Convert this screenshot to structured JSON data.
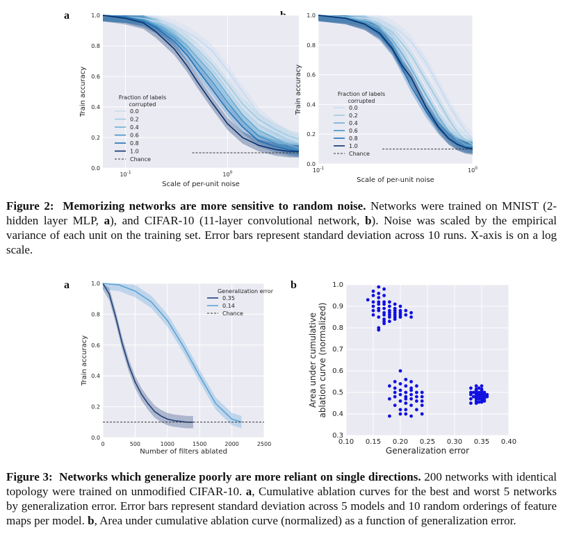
{
  "figure2": {
    "panel_a_letter": "a",
    "panel_b_letter": "b",
    "caption_label": "Figure 2:",
    "caption_title": "Memorizing networks are more sensitive to random noise.",
    "caption_text_1": "Networks were trained on MNIST (2-hidden layer MLP, ",
    "caption_bold_a": "a",
    "caption_text_2": "), and CIFAR-10 (11-layer convolutional network, ",
    "caption_bold_b": "b",
    "caption_text_3": "). Noise was scaled by the empirical variance of each unit on the training set. Error bars represent standard deviation across 10 runs. X-axis is on a log scale."
  },
  "figure3": {
    "panel_a_letter": "a",
    "panel_b_letter": "b",
    "caption_label": "Figure 3:",
    "caption_title": "Networks which generalize poorly are more reliant on single directions.",
    "caption_text_1": "200 networks with identical topology were trained on unmodified CIFAR-10. ",
    "caption_bold_a": "a",
    "caption_text_2": ", Cumulative ablation curves for the best and worst 5 networks by generalization error. Error bars represent standard deviation across 5 models and 10 random orderings of feature maps per model. ",
    "caption_bold_b": "b",
    "caption_text_3": ", Area under cumulative ablation curve (normalized) as a function of generalization error."
  },
  "chart_data": [
    {
      "id": "fig2a",
      "type": "line",
      "xlabel": "Scale of per-unit noise",
      "ylabel": "Train accuracy",
      "xscale": "log",
      "xlim": [
        0.06,
        5.0
      ],
      "ylim": [
        0.0,
        1.0
      ],
      "xticks": [
        {
          "v": 0.1,
          "label": "10",
          "sup": "-1"
        },
        {
          "v": 1.0,
          "label": "10",
          "sup": "0"
        }
      ],
      "yticks": [
        0.0,
        0.2,
        0.4,
        0.6,
        0.8,
        1.0
      ],
      "ytick_labels": [
        "0.0",
        "0.2",
        "0.4",
        "0.6",
        "0.8",
        "1.0"
      ],
      "grid": true,
      "legend_title": "Fraction of labels\ncorrupted",
      "legend_placement": "center-left",
      "chance_label": "Chance",
      "chance": 0.1,
      "x": [
        0.06,
        0.1,
        0.15,
        0.2,
        0.3,
        0.4,
        0.5,
        0.7,
        1.0,
        1.4,
        2.0,
        3.0,
        4.0,
        5.0
      ],
      "series": [
        {
          "name": "0.0",
          "color": "#c6dbef",
          "values": [
            1.0,
            0.99,
            0.98,
            0.96,
            0.93,
            0.89,
            0.85,
            0.77,
            0.64,
            0.5,
            0.36,
            0.26,
            0.2,
            0.17
          ]
        },
        {
          "name": "0.2",
          "color": "#9ecae1",
          "values": [
            1.0,
            0.99,
            0.98,
            0.95,
            0.9,
            0.84,
            0.78,
            0.68,
            0.55,
            0.42,
            0.32,
            0.25,
            0.21,
            0.19
          ]
        },
        {
          "name": "0.4",
          "color": "#6baed6",
          "values": [
            1.0,
            0.99,
            0.97,
            0.94,
            0.87,
            0.8,
            0.73,
            0.62,
            0.48,
            0.35,
            0.25,
            0.19,
            0.15,
            0.13
          ]
        },
        {
          "name": "0.6",
          "color": "#4292c6",
          "values": [
            1.0,
            0.99,
            0.97,
            0.93,
            0.85,
            0.77,
            0.69,
            0.57,
            0.43,
            0.31,
            0.21,
            0.16,
            0.13,
            0.12
          ]
        },
        {
          "name": "0.8",
          "color": "#2171b5",
          "values": [
            1.0,
            0.99,
            0.96,
            0.92,
            0.83,
            0.74,
            0.65,
            0.52,
            0.38,
            0.27,
            0.18,
            0.14,
            0.12,
            0.11
          ]
        },
        {
          "name": "1.0",
          "color": "#08306b",
          "values": [
            1.0,
            0.98,
            0.95,
            0.89,
            0.78,
            0.67,
            0.57,
            0.43,
            0.29,
            0.2,
            0.15,
            0.12,
            0.11,
            0.11
          ]
        }
      ]
    },
    {
      "id": "fig2b",
      "type": "line",
      "xlabel": "Scale of per-unit noise",
      "ylabel": "Train accuracy",
      "xscale": "log",
      "xlim": [
        0.1,
        1.0
      ],
      "ylim": [
        0.0,
        1.0
      ],
      "xticks": [
        {
          "v": 0.1,
          "label": "10",
          "sup": "-1"
        },
        {
          "v": 1.0,
          "label": "10",
          "sup": "0"
        }
      ],
      "yticks": [
        0.0,
        0.2,
        0.4,
        0.6,
        0.8,
        1.0
      ],
      "ytick_labels": [
        "0.0",
        "0.2",
        "0.4",
        "0.6",
        "0.8",
        "1.0"
      ],
      "grid": true,
      "legend_title": "Fraction of labels\ncorrupted",
      "legend_placement": "bottom-left",
      "chance_label": "Chance",
      "chance": 0.1,
      "x": [
        0.1,
        0.15,
        0.2,
        0.25,
        0.3,
        0.35,
        0.4,
        0.5,
        0.6,
        0.7,
        0.8,
        0.9,
        1.0
      ],
      "series": [
        {
          "name": "0.0",
          "color": "#c6dbef",
          "values": [
            1.0,
            0.99,
            0.98,
            0.96,
            0.93,
            0.88,
            0.82,
            0.68,
            0.53,
            0.4,
            0.3,
            0.22,
            0.17
          ]
        },
        {
          "name": "0.2",
          "color": "#9ecae1",
          "values": [
            1.0,
            0.99,
            0.97,
            0.94,
            0.89,
            0.81,
            0.73,
            0.56,
            0.42,
            0.3,
            0.21,
            0.16,
            0.13
          ]
        },
        {
          "name": "0.4",
          "color": "#6baed6",
          "values": [
            1.0,
            0.99,
            0.96,
            0.91,
            0.84,
            0.74,
            0.64,
            0.46,
            0.32,
            0.22,
            0.16,
            0.13,
            0.12
          ]
        },
        {
          "name": "0.6",
          "color": "#4292c6",
          "values": [
            1.0,
            0.98,
            0.95,
            0.89,
            0.8,
            0.68,
            0.57,
            0.39,
            0.27,
            0.19,
            0.14,
            0.12,
            0.11
          ]
        },
        {
          "name": "0.8",
          "color": "#2171b5",
          "values": [
            1.0,
            0.98,
            0.94,
            0.87,
            0.77,
            0.64,
            0.52,
            0.35,
            0.24,
            0.17,
            0.13,
            0.11,
            0.11
          ]
        },
        {
          "name": "1.0",
          "color": "#08306b",
          "values": [
            1.0,
            0.98,
            0.94,
            0.88,
            0.78,
            0.66,
            0.58,
            0.38,
            0.25,
            0.17,
            0.13,
            0.11,
            0.1
          ]
        }
      ]
    },
    {
      "id": "fig3a",
      "type": "line",
      "xlabel": "Number of filters ablated",
      "ylabel": "Train accuracy",
      "xlim": [
        0,
        2500
      ],
      "ylim": [
        0.0,
        1.0
      ],
      "xticks": [
        0,
        500,
        1000,
        1500,
        2000,
        2500
      ],
      "xtick_labels": [
        "0",
        "500",
        "1000",
        "1500",
        "2000",
        "2500"
      ],
      "yticks": [
        0.0,
        0.2,
        0.4,
        0.6,
        0.8,
        1.0
      ],
      "ytick_labels": [
        "0.0",
        "0.2",
        "0.4",
        "0.6",
        "0.8",
        "1.0"
      ],
      "grid": true,
      "legend_title": "Generalization error",
      "legend_placement": "top-right",
      "chance_label": "Chance",
      "chance": 0.1,
      "series": [
        {
          "name": "0.35",
          "color": "#1f3f78",
          "x": [
            0,
            100,
            200,
            300,
            400,
            500,
            600,
            700,
            800,
            900,
            1000,
            1100,
            1200,
            1300,
            1400
          ],
          "values": [
            1.0,
            0.93,
            0.78,
            0.61,
            0.47,
            0.36,
            0.28,
            0.22,
            0.17,
            0.14,
            0.12,
            0.11,
            0.105,
            0.1,
            0.1
          ]
        },
        {
          "name": "0.14",
          "color": "#5aa3d6",
          "x": [
            0,
            250,
            500,
            750,
            1000,
            1250,
            1500,
            1750,
            2000,
            2150
          ],
          "values": [
            1.0,
            0.99,
            0.95,
            0.88,
            0.76,
            0.59,
            0.4,
            0.22,
            0.12,
            0.1
          ]
        }
      ]
    },
    {
      "id": "fig3b",
      "type": "scatter",
      "xlabel": "Generalization error",
      "ylabel": "Area under cumulative\nablation curve (normalized)",
      "xlim": [
        0.1,
        0.4
      ],
      "ylim": [
        0.3,
        1.0
      ],
      "xticks": [
        0.1,
        0.15,
        0.2,
        0.25,
        0.3,
        0.35,
        0.4
      ],
      "xtick_labels": [
        "0.10",
        "0.15",
        "0.20",
        "0.25",
        "0.30",
        "0.35",
        "0.40"
      ],
      "yticks": [
        0.3,
        0.4,
        0.5,
        0.6,
        0.7,
        0.8,
        0.9,
        1.0
      ],
      "ytick_labels": [
        "0.3",
        "0.4",
        "0.5",
        "0.6",
        "0.7",
        "0.8",
        "0.9",
        "1.0"
      ],
      "grid": true,
      "color": "#1010e0",
      "points": [
        [
          0.14,
          0.93
        ],
        [
          0.15,
          0.97
        ],
        [
          0.15,
          0.95
        ],
        [
          0.15,
          0.92
        ],
        [
          0.15,
          0.9
        ],
        [
          0.15,
          0.86
        ],
        [
          0.16,
          0.99
        ],
        [
          0.16,
          0.96
        ],
        [
          0.16,
          0.94
        ],
        [
          0.16,
          0.91
        ],
        [
          0.16,
          0.88
        ],
        [
          0.16,
          0.85
        ],
        [
          0.16,
          0.8
        ],
        [
          0.16,
          0.79
        ],
        [
          0.17,
          0.98
        ],
        [
          0.17,
          0.95
        ],
        [
          0.17,
          0.92
        ],
        [
          0.17,
          0.89
        ],
        [
          0.17,
          0.87
        ],
        [
          0.17,
          0.84
        ],
        [
          0.17,
          0.82
        ],
        [
          0.18,
          0.9
        ],
        [
          0.18,
          0.88
        ],
        [
          0.18,
          0.86
        ],
        [
          0.18,
          0.85
        ],
        [
          0.18,
          0.83
        ],
        [
          0.19,
          0.91
        ],
        [
          0.19,
          0.89
        ],
        [
          0.19,
          0.87
        ],
        [
          0.19,
          0.86
        ],
        [
          0.19,
          0.84
        ],
        [
          0.2,
          0.9
        ],
        [
          0.2,
          0.88
        ],
        [
          0.2,
          0.87
        ],
        [
          0.2,
          0.85
        ],
        [
          0.21,
          0.88
        ],
        [
          0.21,
          0.86
        ],
        [
          0.22,
          0.87
        ],
        [
          0.22,
          0.85
        ],
        [
          0.16,
          0.89
        ],
        [
          0.17,
          0.91
        ],
        [
          0.18,
          0.92
        ],
        [
          0.19,
          0.88
        ],
        [
          0.2,
          0.86
        ],
        [
          0.15,
          0.88
        ],
        [
          0.16,
          0.92
        ],
        [
          0.17,
          0.86
        ],
        [
          0.18,
          0.87
        ],
        [
          0.19,
          0.85
        ],
        [
          0.17,
          0.83
        ],
        [
          0.18,
          0.53
        ],
        [
          0.18,
          0.47
        ],
        [
          0.18,
          0.39
        ],
        [
          0.19,
          0.55
        ],
        [
          0.19,
          0.5
        ],
        [
          0.19,
          0.48
        ],
        [
          0.19,
          0.44
        ],
        [
          0.2,
          0.6
        ],
        [
          0.2,
          0.54
        ],
        [
          0.2,
          0.51
        ],
        [
          0.2,
          0.49
        ],
        [
          0.2,
          0.46
        ],
        [
          0.2,
          0.4
        ],
        [
          0.21,
          0.53
        ],
        [
          0.21,
          0.5
        ],
        [
          0.21,
          0.48
        ],
        [
          0.21,
          0.45
        ],
        [
          0.21,
          0.42
        ],
        [
          0.21,
          0.4
        ],
        [
          0.22,
          0.55
        ],
        [
          0.22,
          0.52
        ],
        [
          0.22,
          0.49
        ],
        [
          0.22,
          0.47
        ],
        [
          0.22,
          0.44
        ],
        [
          0.22,
          0.39
        ],
        [
          0.23,
          0.53
        ],
        [
          0.23,
          0.5
        ],
        [
          0.23,
          0.46
        ],
        [
          0.23,
          0.42
        ],
        [
          0.24,
          0.5
        ],
        [
          0.24,
          0.48
        ],
        [
          0.24,
          0.44
        ],
        [
          0.24,
          0.4
        ],
        [
          0.19,
          0.52
        ],
        [
          0.21,
          0.47
        ],
        [
          0.23,
          0.48
        ],
        [
          0.2,
          0.42
        ],
        [
          0.22,
          0.51
        ],
        [
          0.24,
          0.46
        ],
        [
          0.21,
          0.56
        ],
        [
          0.33,
          0.52
        ],
        [
          0.33,
          0.49
        ],
        [
          0.33,
          0.47
        ],
        [
          0.33,
          0.45
        ],
        [
          0.34,
          0.51
        ],
        [
          0.34,
          0.5
        ],
        [
          0.34,
          0.49
        ],
        [
          0.34,
          0.48
        ],
        [
          0.34,
          0.47
        ],
        [
          0.34,
          0.46
        ],
        [
          0.345,
          0.52
        ],
        [
          0.345,
          0.5
        ],
        [
          0.345,
          0.49
        ],
        [
          0.345,
          0.48
        ],
        [
          0.345,
          0.47
        ],
        [
          0.35,
          0.51
        ],
        [
          0.35,
          0.5
        ],
        [
          0.35,
          0.49
        ],
        [
          0.35,
          0.48
        ],
        [
          0.35,
          0.47
        ],
        [
          0.35,
          0.46
        ],
        [
          0.355,
          0.5
        ],
        [
          0.355,
          0.49
        ],
        [
          0.355,
          0.48
        ],
        [
          0.355,
          0.47
        ],
        [
          0.335,
          0.5
        ],
        [
          0.335,
          0.48
        ],
        [
          0.34,
          0.53
        ],
        [
          0.35,
          0.53
        ],
        [
          0.36,
          0.49
        ],
        [
          0.36,
          0.48
        ],
        [
          0.33,
          0.5
        ],
        [
          0.34,
          0.45
        ],
        [
          0.345,
          0.455
        ],
        [
          0.35,
          0.455
        ],
        [
          0.355,
          0.46
        ],
        [
          0.34,
          0.515
        ],
        [
          0.35,
          0.515
        ]
      ]
    }
  ]
}
